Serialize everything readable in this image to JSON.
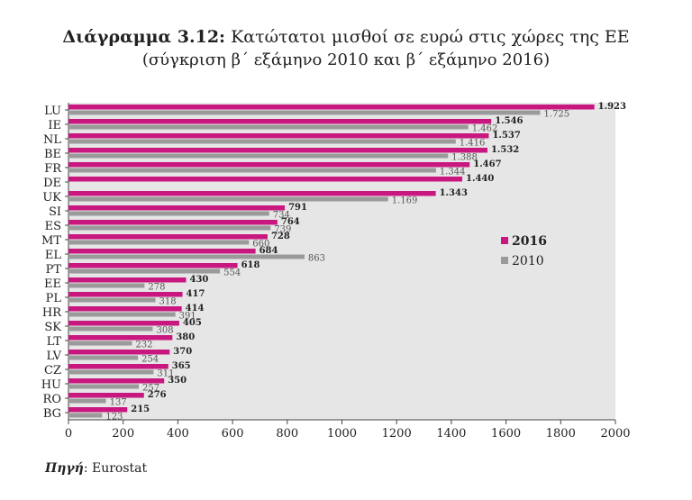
{
  "chart_data": {
    "type": "bar",
    "orientation": "horizontal",
    "title_label": "Διάγραμμα 3.12:",
    "title": "Κατώτατοι μισθοί σε ευρώ στις χώρες της ΕΕ",
    "subtitle": "(σύγκριση β΄ εξάμηνο 2010 και β΄ εξάμηνο 2016)",
    "categories": [
      "LU",
      "IE",
      "NL",
      "BE",
      "FR",
      "DE",
      "UK",
      "SI",
      "ES",
      "MT",
      "EL",
      "PT",
      "EE",
      "PL",
      "HR",
      "SK",
      "LT",
      "LV",
      "CZ",
      "HU",
      "RO",
      "BG"
    ],
    "series": [
      {
        "name": "2016",
        "color": "#c8177e",
        "values": [
          1923,
          1546,
          1537,
          1532,
          1467,
          1440,
          1343,
          791,
          764,
          728,
          684,
          618,
          430,
          417,
          414,
          405,
          380,
          370,
          365,
          350,
          276,
          215
        ],
        "labels": [
          "1.923",
          "1.546",
          "1.537",
          "1.532",
          "1.467",
          "1.440",
          "1.343",
          "791",
          "764",
          "728",
          "684",
          "618",
          "430",
          "417",
          "414",
          "405",
          "380",
          "370",
          "365",
          "350",
          "276",
          "215"
        ]
      },
      {
        "name": "2010",
        "color": "#9a9a9a",
        "values": [
          1725,
          1462,
          1416,
          1388,
          1344,
          null,
          1169,
          734,
          739,
          660,
          863,
          554,
          278,
          318,
          391,
          308,
          232,
          254,
          311,
          257,
          137,
          123
        ],
        "labels": [
          "1.725",
          "1.462",
          "1.416",
          "1.388",
          "1.344",
          "",
          "1.169",
          "734",
          "739",
          "660",
          "863",
          "554",
          "278",
          "318",
          "391",
          "308",
          "232",
          "254",
          "311",
          "257",
          "137",
          "123"
        ]
      }
    ],
    "xlim": [
      0,
      2000
    ],
    "xticks": [
      "0",
      "200",
      "400",
      "600",
      "800",
      "1000",
      "1200",
      "1400",
      "1600",
      "1800",
      "2000"
    ],
    "legend": [
      "2016",
      "2010"
    ]
  },
  "source_label": "Πηγή",
  "source_text": ": Eurostat"
}
